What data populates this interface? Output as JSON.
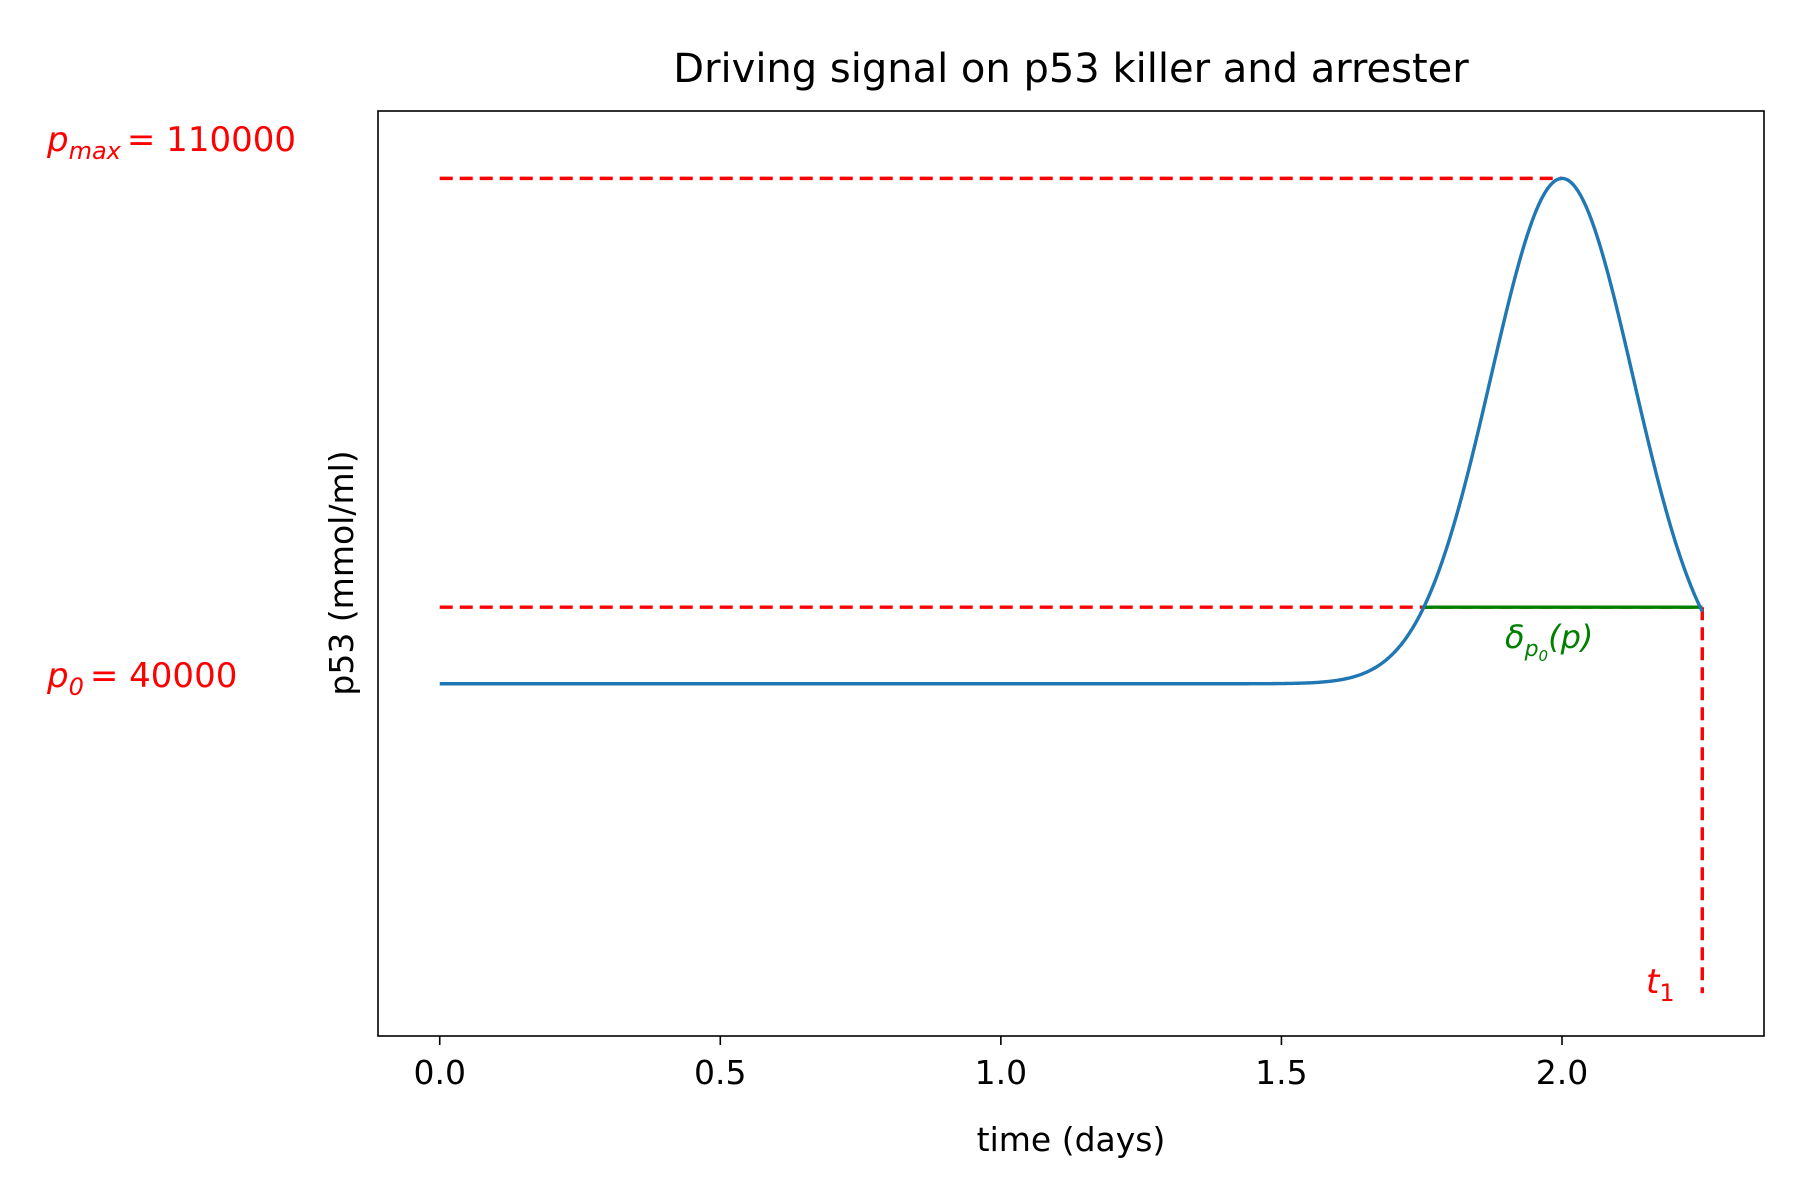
{
  "chart_data": {
    "type": "line",
    "title": "Driving signal on p53 killer and arrester",
    "xlabel": "time (days)",
    "ylabel": "p53 (mmol/ml)",
    "xlim": [
      -0.11,
      2.36
    ],
    "ylim": [
      -30000,
      121000
    ],
    "x_ticks": [
      0.0,
      0.5,
      1.0,
      1.5,
      2.0
    ],
    "x_tick_labels": [
      "0.0",
      "0.5",
      "1.0",
      "1.5",
      "2.0"
    ],
    "grid": false,
    "series": [
      {
        "color": "#1f77b4",
        "x": [
          0.0,
          0.5,
          1.0,
          1.5,
          1.55,
          1.6,
          1.65,
          1.7,
          1.75,
          1.8,
          1.85,
          1.9,
          1.95,
          1.98,
          2.0,
          2.02,
          2.05,
          2.1,
          2.15,
          2.2,
          2.25
        ],
        "y": [
          27500,
          27500,
          27500,
          27500,
          27550,
          27800,
          28800,
          32000,
          39300,
          52400,
          71200,
          91000,
          105900,
          109600,
          110000,
          109600,
          105900,
          91000,
          71200,
          52400,
          39300
        ]
      }
    ],
    "reference_lines": {
      "color": "#ff0000",
      "p_max": {
        "x_from": 0.0,
        "x_to": 2.0,
        "y": 110000
      },
      "p_0": {
        "x_from": 0.0,
        "x_to": 2.25,
        "y": 40000
      },
      "t1": {
        "x": 2.25,
        "y_from": 40000,
        "y_to": -23000
      }
    },
    "duration_segment": {
      "color": "#008000",
      "x_from": 1.75,
      "x_to": 2.25,
      "y": 40000
    },
    "annotations": {
      "p_max": {
        "symbol": "p",
        "subscript": "max",
        "value": "= 110000",
        "color": "#ff0000"
      },
      "p_0": {
        "symbol": "p",
        "subscript": "0",
        "value": "= 40000",
        "color": "#ff0000"
      },
      "t1": {
        "symbol": "t",
        "subscript": "1",
        "color": "#ff0000"
      },
      "delta": {
        "symbol": "δ",
        "subscript": "p",
        "sub_subscript": "0",
        "argument": "(p)",
        "color": "#008000"
      }
    }
  }
}
